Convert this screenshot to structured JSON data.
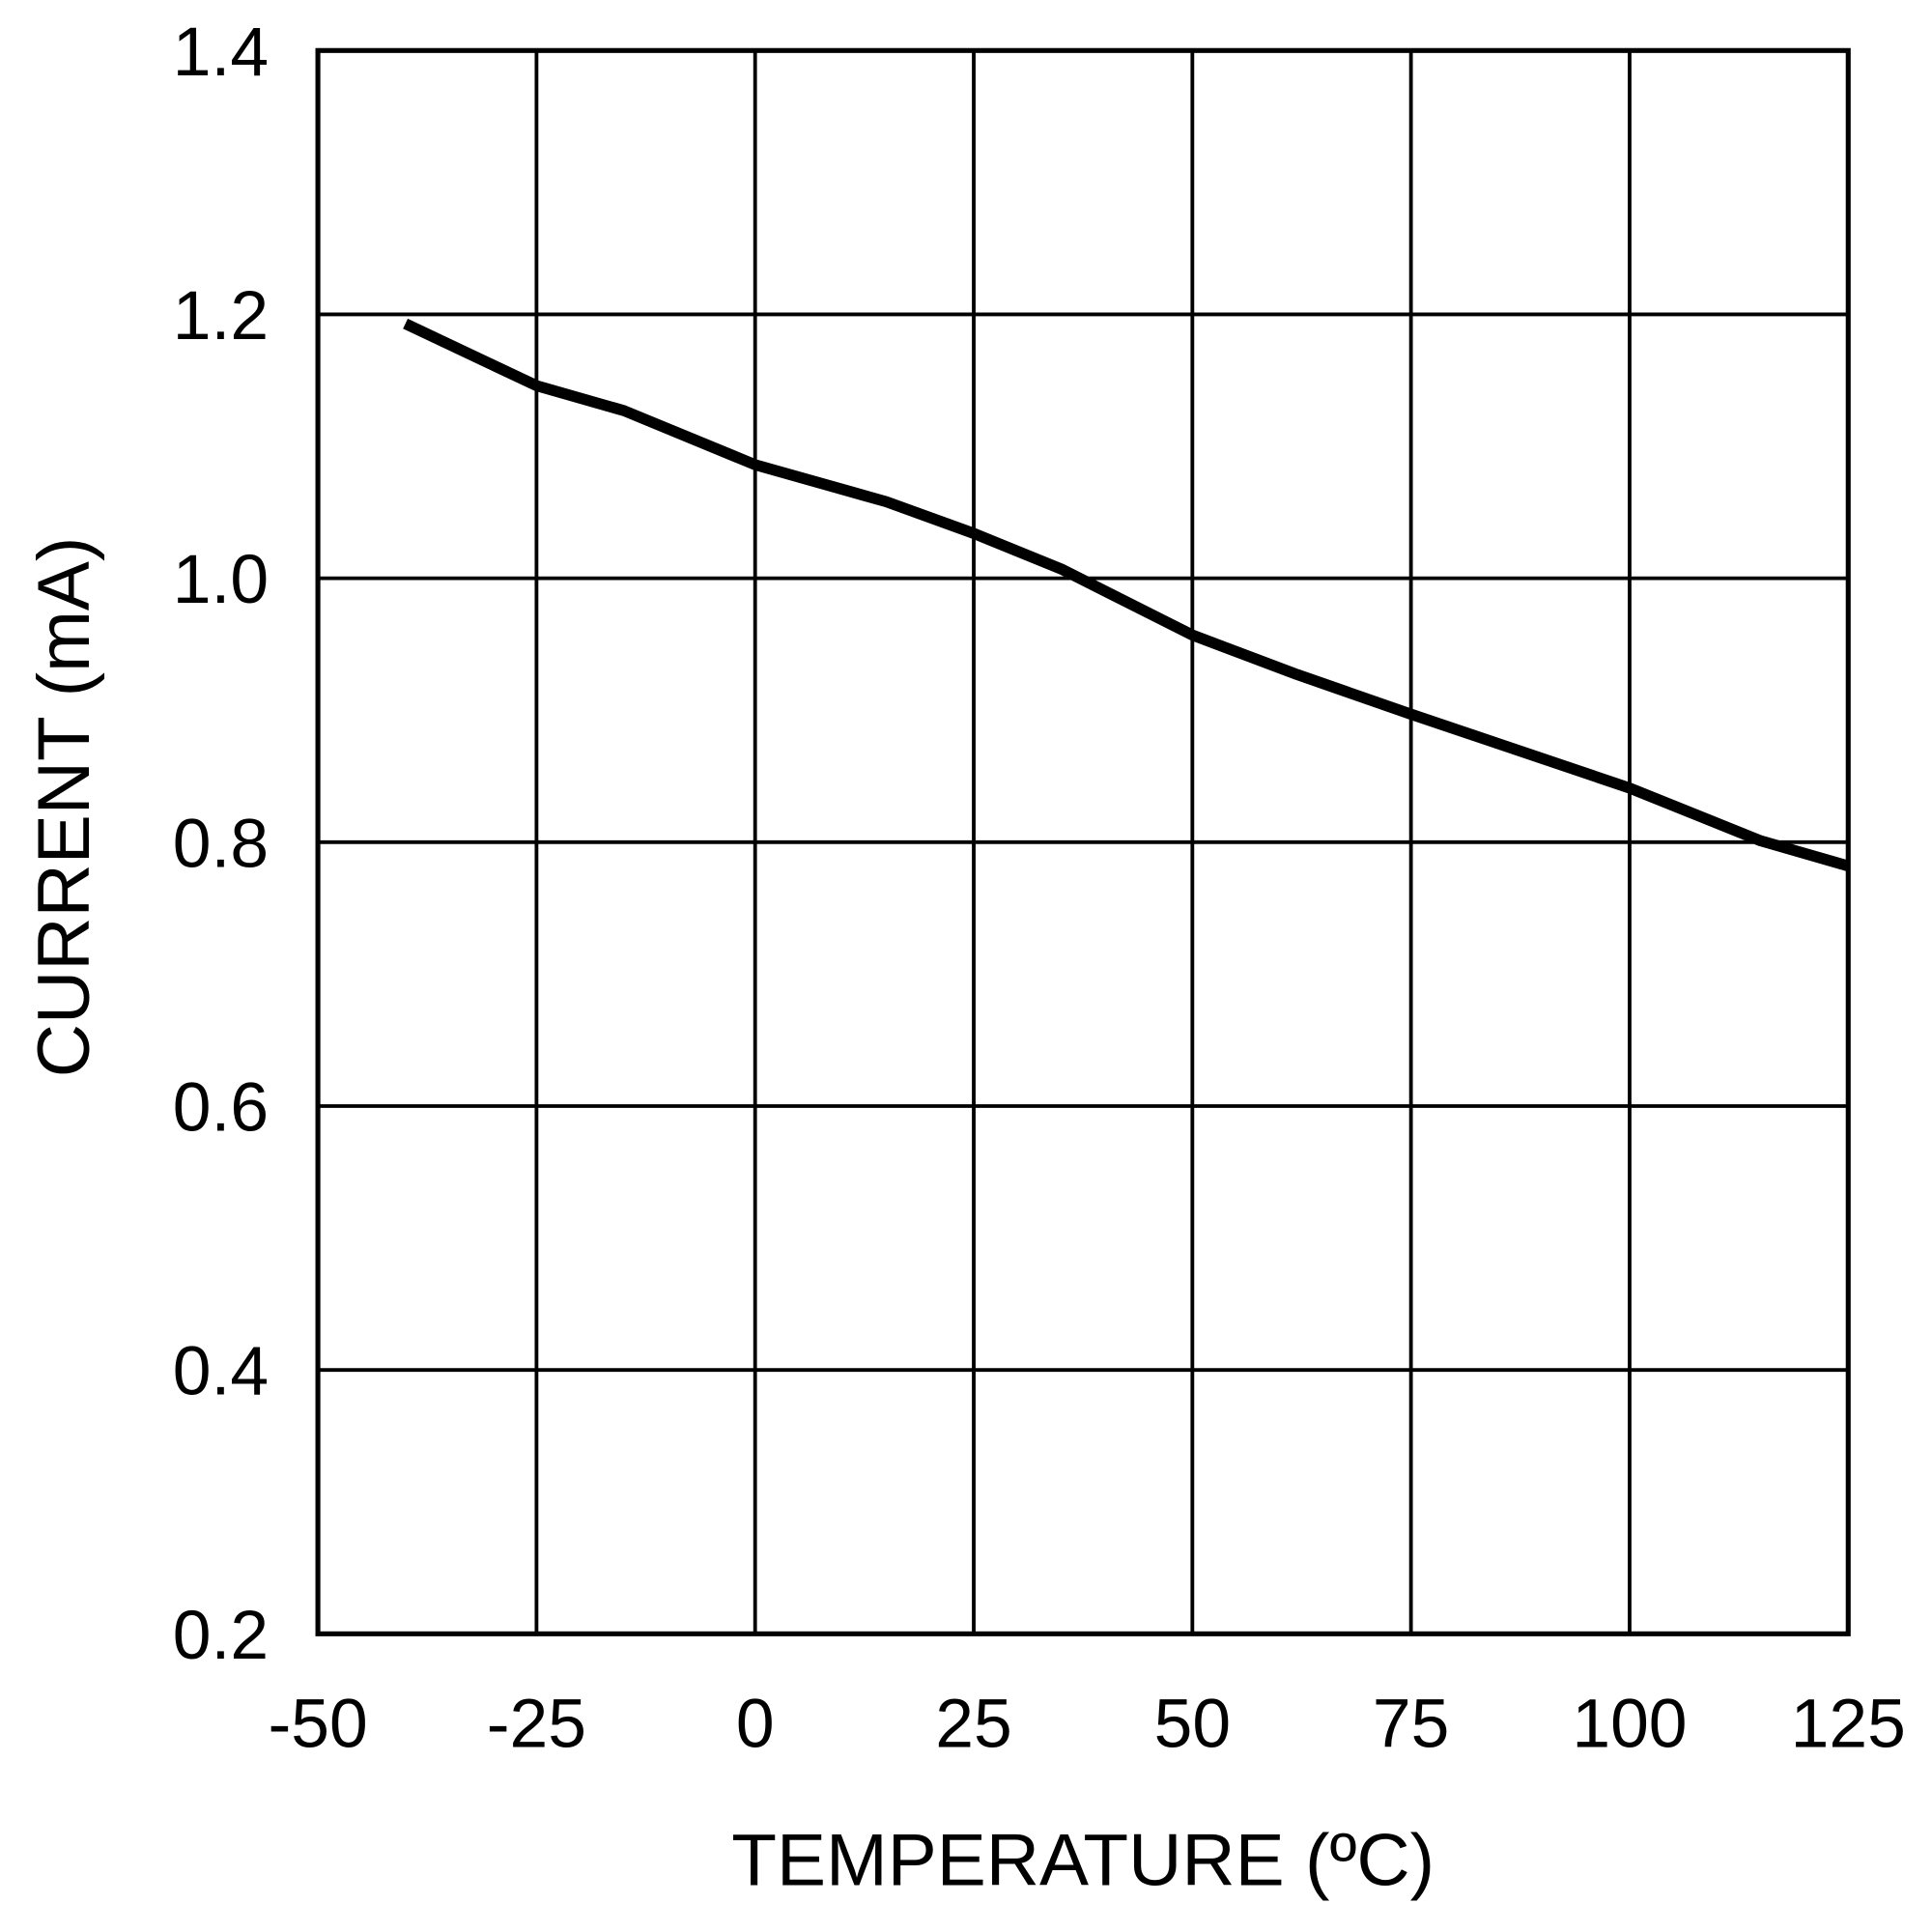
{
  "chart_data": {
    "type": "line",
    "title": "",
    "xlabel": "TEMPERATURE (ºC)",
    "ylabel": "CURRENT (mA)",
    "xlim": [
      -50,
      125
    ],
    "ylim": [
      0.2,
      1.4
    ],
    "xticks": [
      -50,
      -25,
      0,
      25,
      50,
      75,
      100,
      125
    ],
    "xtick_labels": [
      "-50",
      "-25",
      "0",
      "25",
      "50",
      "75",
      "100",
      "125"
    ],
    "yticks": [
      0.2,
      0.4,
      0.6,
      0.8,
      1.0,
      1.2,
      1.4
    ],
    "ytick_labels": [
      "0.2",
      "0.4",
      "0.6",
      "0.8",
      "1.0",
      "1.2",
      "1.4"
    ],
    "grid": true,
    "series": [
      {
        "color": "#000000",
        "x": [
          -40,
          -25,
          -15,
          0,
          15,
          25,
          35,
          50,
          62,
          75,
          100,
          115,
          125
        ],
        "y": [
          1.193,
          1.146,
          1.127,
          1.086,
          1.058,
          1.034,
          1.007,
          0.957,
          0.927,
          0.897,
          0.841,
          0.801,
          0.782
        ]
      }
    ]
  }
}
